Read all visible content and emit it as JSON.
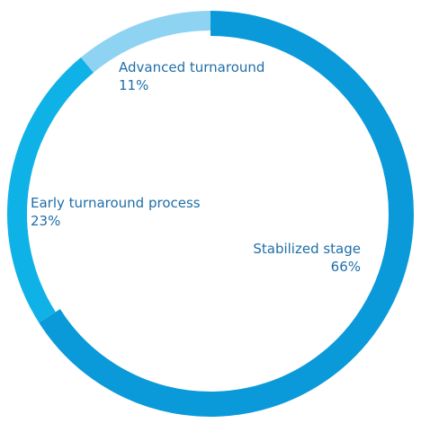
{
  "chart_data": {
    "type": "pie",
    "donut": true,
    "title": "",
    "slices": [
      {
        "label": "Stabilized stage",
        "value": 66,
        "display": "66%",
        "color": "#0a9ad9"
      },
      {
        "label": "Early turnaround process",
        "value": 23,
        "display": "23%",
        "color": "#0fb2e6"
      },
      {
        "label": "Advanced turnaround",
        "value": 11,
        "display": "11%",
        "color": "#8fd3f2"
      }
    ]
  }
}
